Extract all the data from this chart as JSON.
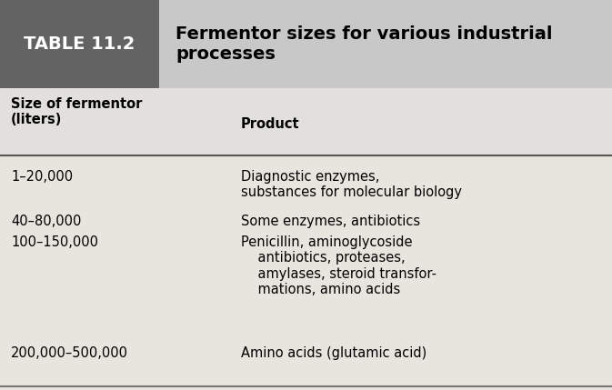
{
  "table_label": "TABLE 11.2",
  "table_title": "Fermentor sizes for various industrial\nprocesses",
  "col1_header": "Size of fermentor\n(liters)",
  "col2_header": "Product",
  "rows": [
    {
      "size": "1–20,000",
      "product": "Diagnostic enzymes,\nsubstances for molecular biology"
    },
    {
      "size": "40–80,000",
      "product": "Some enzymes, antibiotics"
    },
    {
      "size": "100–150,000",
      "product": "Penicillin, aminoglycoside\n    antibiotics, proteases,\n    amylases, steroid transfor-\n    mations, amino acids"
    },
    {
      "size": "200,000–500,000",
      "product": "Amino acids (glutamic acid)"
    }
  ],
  "header_bg_color": "#636363",
  "header_text_color": "#ffffff",
  "title_bg_color": "#c8c8c8",
  "title_text_color": "#000000",
  "col_header_bg": "#e2e0dc",
  "body_bg": "#e8e5df",
  "border_color": "#888888",
  "fig_width": 6.73,
  "fig_height": 4.29,
  "dpi": 100
}
